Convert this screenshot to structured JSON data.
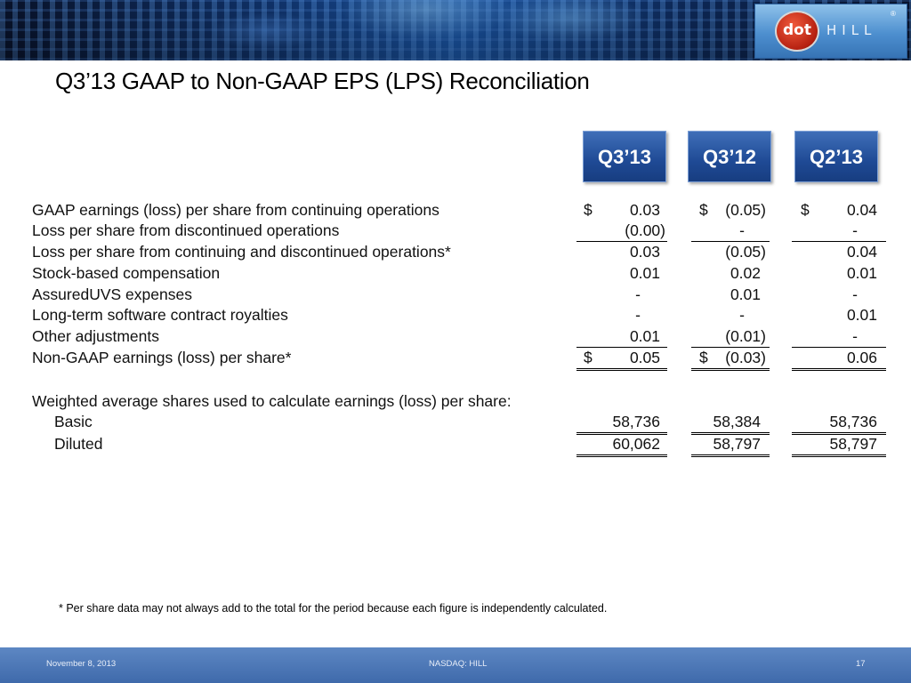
{
  "logo": {
    "dot": "dot",
    "hill": "HILL",
    "reg": "®"
  },
  "title": "Q3’13 GAAP to Non-GAAP EPS (LPS) Reconciliation",
  "columns": [
    "Q3’13",
    "Q3’12",
    "Q2’13"
  ],
  "rows": [
    {
      "label": "GAAP earnings (loss) per share from continuing operations",
      "dollar": [
        "$",
        "$",
        "$"
      ],
      "values": [
        "0.03",
        "(0.05)",
        "0.04"
      ]
    },
    {
      "label": "Loss per share from discontinued operations",
      "values": [
        "(0.00)",
        "-",
        "-"
      ]
    },
    {
      "label": "Loss per share from continuing and discontinued operations*",
      "values": [
        "0.03",
        "(0.05)",
        "0.04"
      ]
    },
    {
      "label": "Stock-based compensation",
      "values": [
        "0.01",
        "0.02",
        "0.01"
      ]
    },
    {
      "label": "AssuredUVS expenses",
      "values": [
        "-",
        "0.01",
        "-"
      ]
    },
    {
      "label": "Long-term software contract royalties",
      "values": [
        "-",
        "-",
        "0.01"
      ]
    },
    {
      "label": "Other adjustments",
      "values": [
        "0.01",
        "(0.01)",
        "-"
      ]
    },
    {
      "label": "Non-GAAP earnings (loss) per share*",
      "dollar": [
        "$",
        "$",
        ""
      ],
      "values": [
        "0.05",
        "(0.03)",
        "0.06"
      ]
    }
  ],
  "shares_heading": "Weighted average shares used to calculate earnings (loss) per share:",
  "shares": [
    {
      "label": "Basic",
      "values": [
        "58,736",
        "58,384",
        "58,736"
      ]
    },
    {
      "label": "Diluted",
      "values": [
        "60,062",
        "58,797",
        "58,797"
      ]
    }
  ],
  "footnote": "* Per share data may not always add to the total for the period because each figure is independently calculated.",
  "footer": {
    "date": "November 8, 2013",
    "ticker": "NASDAQ: HILL",
    "page": "17"
  }
}
